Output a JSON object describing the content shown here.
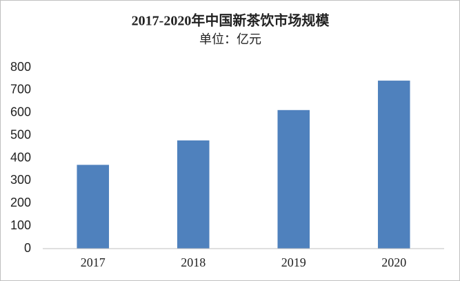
{
  "chart_data": {
    "type": "bar",
    "title": "2017-2020年中国新茶饮市场规模",
    "subtitle": "单位：亿元",
    "categories": [
      "2017",
      "2018",
      "2019",
      "2020"
    ],
    "values": [
      370,
      478,
      612,
      742
    ],
    "color": "#4f81bd",
    "ylim": [
      0,
      800
    ],
    "yticks": [
      0,
      100,
      200,
      300,
      400,
      500,
      600,
      700,
      800
    ],
    "grid": false
  }
}
